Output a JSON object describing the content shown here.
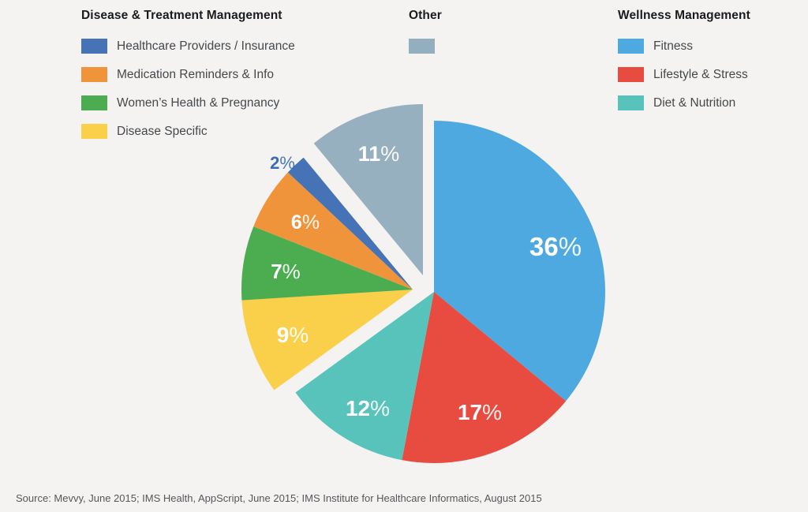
{
  "background_color": "#F4F3F1",
  "legends": [
    {
      "title": "Disease & Treatment Management",
      "items": [
        {
          "label": "Healthcare Providers / Insurance",
          "color": "#4673B5"
        },
        {
          "label": "Medication Reminders & Info",
          "color": "#F0943C"
        },
        {
          "label": "Women’s Health & Pregnancy",
          "color": "#4BAD50"
        },
        {
          "label": "Disease Specific",
          "color": "#FAD04A"
        }
      ]
    },
    {
      "title": "Other",
      "items": [
        {
          "label": "",
          "color": "#93AEBF"
        }
      ]
    },
    {
      "title": "Wellness Management",
      "items": [
        {
          "label": "Fitness",
          "color": "#4DA9E0"
        },
        {
          "label": "Lifestyle & Stress",
          "color": "#E84B3F"
        },
        {
          "label": "Diet & Nutrition",
          "color": "#57C3BB"
        }
      ]
    }
  ],
  "chart_data": {
    "type": "pie",
    "unit": "%",
    "start_angle_deg": 0,
    "direction": "clockwise",
    "legend_position": "top",
    "slices": [
      {
        "label": "Fitness",
        "value": 36,
        "color": "#4DA9E0",
        "group": "Wellness Management",
        "label_color": "#FFFFFF"
      },
      {
        "label": "Lifestyle & Stress",
        "value": 17,
        "color": "#E84B3F",
        "group": "Wellness Management",
        "label_color": "#FFFFFF"
      },
      {
        "label": "Diet & Nutrition",
        "value": 12,
        "color": "#57C3BB",
        "group": "Wellness Management",
        "label_color": "#FFFFFF"
      },
      {
        "label": "Disease Specific",
        "value": 9,
        "color": "#FAD04A",
        "group": "Disease & Treatment Management",
        "label_color": "#FFFFFF"
      },
      {
        "label": "Women’s Health & Pregnancy",
        "value": 7,
        "color": "#4BAD50",
        "group": "Disease & Treatment Management",
        "label_color": "#FFFFFF"
      },
      {
        "label": "Medication Reminders & Info",
        "value": 6,
        "color": "#F0943C",
        "group": "Disease & Treatment Management",
        "label_color": "#FFFFFF"
      },
      {
        "label": "Healthcare Providers / Insurance",
        "value": 2,
        "color": "#4673B5",
        "group": "Disease & Treatment Management",
        "label_color": "#3A6DB5",
        "label_placement": "outside"
      },
      {
        "label": "Other",
        "value": 11,
        "color": "#96B0C0",
        "group": "Other",
        "label_color": "#FFFFFF"
      }
    ],
    "exploded_groups": [
      "Disease & Treatment Management",
      "Other"
    ]
  },
  "source": "Source: Mevvy, June 2015; IMS Health, AppScript, June 2015; IMS Institute for Healthcare Informatics, August 2015"
}
